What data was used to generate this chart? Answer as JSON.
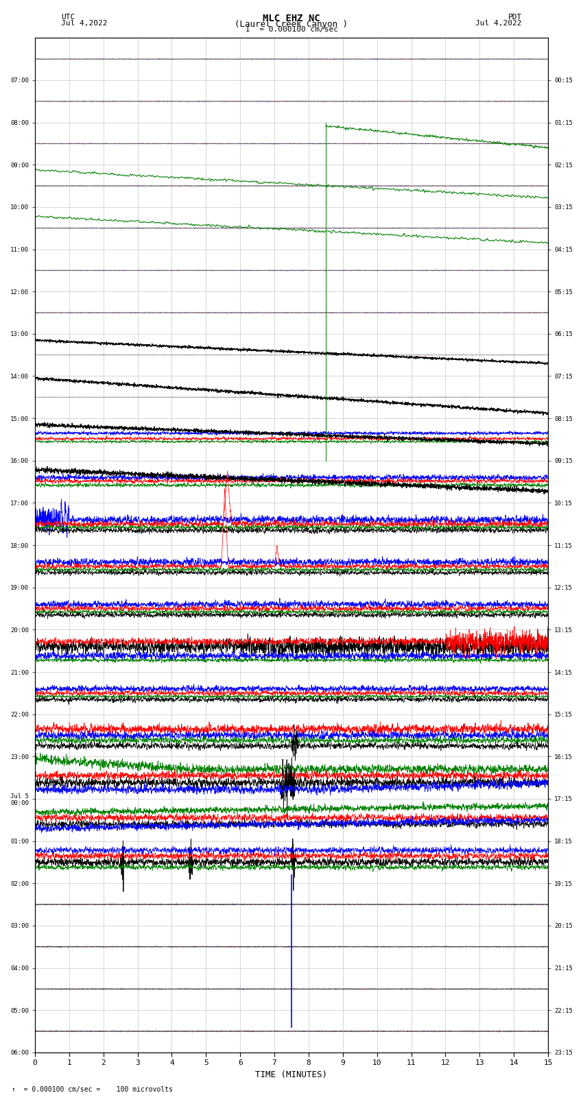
{
  "title_line1": "MLC EHZ NC",
  "title_line2": "(Laurel Creek Canyon )",
  "title_line3": "I  = 0.000100 cm/sec",
  "left_label_top": "UTC",
  "left_label_date": "Jul 4,2022",
  "right_label_top": "PDT",
  "right_label_date": "Jul 4,2022",
  "bottom_label": "TIME (MINUTES)",
  "bottom_note": "= 0.000100 cm/sec =    100 microvolts",
  "xlabel_ticks": [
    0,
    1,
    2,
    3,
    4,
    5,
    6,
    7,
    8,
    9,
    10,
    11,
    12,
    13,
    14,
    15
  ],
  "xlim": [
    0,
    15
  ],
  "ytick_labels_left": [
    "07:00",
    "08:00",
    "09:00",
    "10:00",
    "11:00",
    "12:00",
    "13:00",
    "14:00",
    "15:00",
    "16:00",
    "17:00",
    "18:00",
    "19:00",
    "20:00",
    "21:00",
    "22:00",
    "23:00",
    "Jul 5\n00:00",
    "01:00",
    "02:00",
    "03:00",
    "04:00",
    "05:00",
    "06:00"
  ],
  "ytick_labels_right": [
    "00:15",
    "01:15",
    "02:15",
    "03:15",
    "04:15",
    "05:15",
    "06:15",
    "07:15",
    "08:15",
    "09:15",
    "10:15",
    "11:15",
    "12:15",
    "13:15",
    "14:15",
    "15:15",
    "16:15",
    "17:15",
    "18:15",
    "19:15",
    "20:15",
    "21:15",
    "22:15",
    "23:15"
  ],
  "n_rows": 24,
  "background_color": "#ffffff",
  "grid_color": "#999999",
  "fig_width": 8.5,
  "fig_height": 16.13
}
